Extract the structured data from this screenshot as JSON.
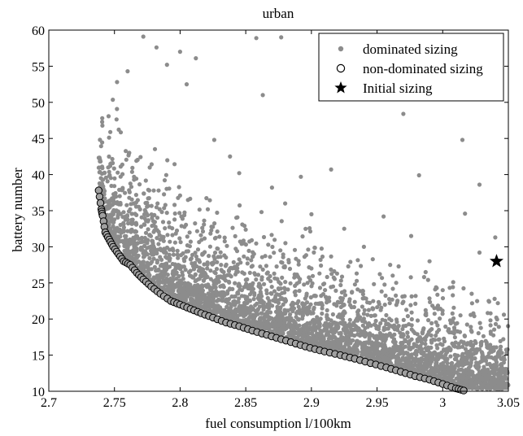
{
  "chart_data": {
    "type": "scatter",
    "title": "urban",
    "xlabel": "fuel consumption l/100km",
    "ylabel": "battery number",
    "xlim": [
      2.7,
      3.05
    ],
    "ylim": [
      10,
      60
    ],
    "xticks": [
      "2.7",
      "2.75",
      "2.8",
      "2.85",
      "2.9",
      "2.95",
      "3",
      "3.05"
    ],
    "yticks": [
      "10",
      "15",
      "20",
      "25",
      "30",
      "35",
      "40",
      "45",
      "50",
      "55",
      "60"
    ],
    "grid": false,
    "legend_position": "top-right",
    "legend": [
      "dominated sizing",
      "non-dominated sizing",
      "Initial sizing"
    ],
    "colors": {
      "dominated": "#8c8c8c",
      "nondominated_fill": "#a0a0a0",
      "nondominated_edge": "#000000",
      "initial": "#000000"
    },
    "series": [
      {
        "name": "dominated sizing",
        "marker": "dot",
        "note_outliers": [
          [
            2.772,
            59.1
          ],
          [
            2.782,
            57.6
          ],
          [
            2.8,
            57.0
          ],
          [
            2.812,
            56.1
          ],
          [
            2.858,
            58.9
          ],
          [
            2.877,
            59.0
          ],
          [
            2.863,
            51.0
          ],
          [
            2.97,
            48.4
          ],
          [
            3.015,
            44.8
          ],
          [
            2.892,
            39.7
          ],
          [
            2.915,
            40.7
          ],
          [
            2.982,
            39.9
          ],
          [
            3.028,
            38.6
          ],
          [
            2.9,
            34.5
          ],
          [
            2.955,
            34.2
          ],
          [
            2.976,
            31.5
          ],
          [
            3.017,
            34.6
          ],
          [
            3.04,
            31.3
          ],
          [
            2.99,
            28.0
          ],
          [
            3.028,
            29.2
          ],
          [
            2.987,
            26.5
          ],
          [
            3.008,
            25.1
          ],
          [
            2.752,
            52.8
          ],
          [
            2.76,
            54.3
          ],
          [
            2.79,
            55.2
          ],
          [
            2.805,
            52.5
          ],
          [
            2.826,
            44.8
          ],
          [
            2.838,
            42.5
          ],
          [
            2.845,
            40.2
          ],
          [
            2.87,
            38.2
          ],
          [
            2.88,
            36.0
          ],
          [
            2.925,
            32.5
          ],
          [
            2.94,
            30.0
          ],
          [
            2.96,
            27.5
          ],
          [
            3.0,
            24.0
          ],
          [
            3.035,
            22.5
          ]
        ]
      },
      {
        "name": "non-dominated sizing",
        "marker": "circle",
        "front": [
          [
            2.738,
            37.8
          ],
          [
            2.74,
            35.2
          ],
          [
            2.741,
            34.3
          ],
          [
            2.743,
            32.0
          ],
          [
            2.746,
            31.0
          ],
          [
            2.749,
            30.0
          ],
          [
            2.753,
            29.0
          ],
          [
            2.757,
            28.0
          ],
          [
            2.762,
            27.5
          ],
          [
            2.767,
            26.4
          ],
          [
            2.772,
            25.5
          ],
          [
            2.778,
            24.5
          ],
          [
            2.785,
            23.5
          ],
          [
            2.793,
            22.5
          ],
          [
            2.8,
            22.0
          ],
          [
            2.808,
            21.4
          ],
          [
            2.816,
            20.8
          ],
          [
            2.825,
            20.2
          ],
          [
            2.835,
            19.5
          ],
          [
            2.845,
            19.0
          ],
          [
            2.855,
            18.4
          ],
          [
            2.866,
            17.8
          ],
          [
            2.877,
            17.2
          ],
          [
            2.888,
            16.6
          ],
          [
            2.899,
            16.0
          ],
          [
            2.91,
            15.5
          ],
          [
            2.922,
            15.0
          ],
          [
            2.933,
            14.5
          ],
          [
            2.945,
            13.9
          ],
          [
            2.957,
            13.3
          ],
          [
            2.968,
            12.7
          ],
          [
            2.979,
            12.1
          ],
          [
            2.99,
            11.6
          ],
          [
            3.0,
            11.0
          ],
          [
            3.01,
            10.4
          ],
          [
            3.016,
            10.1
          ]
        ]
      },
      {
        "name": "Initial sizing",
        "marker": "star",
        "points": [
          [
            3.041,
            28.0
          ]
        ]
      }
    ]
  }
}
